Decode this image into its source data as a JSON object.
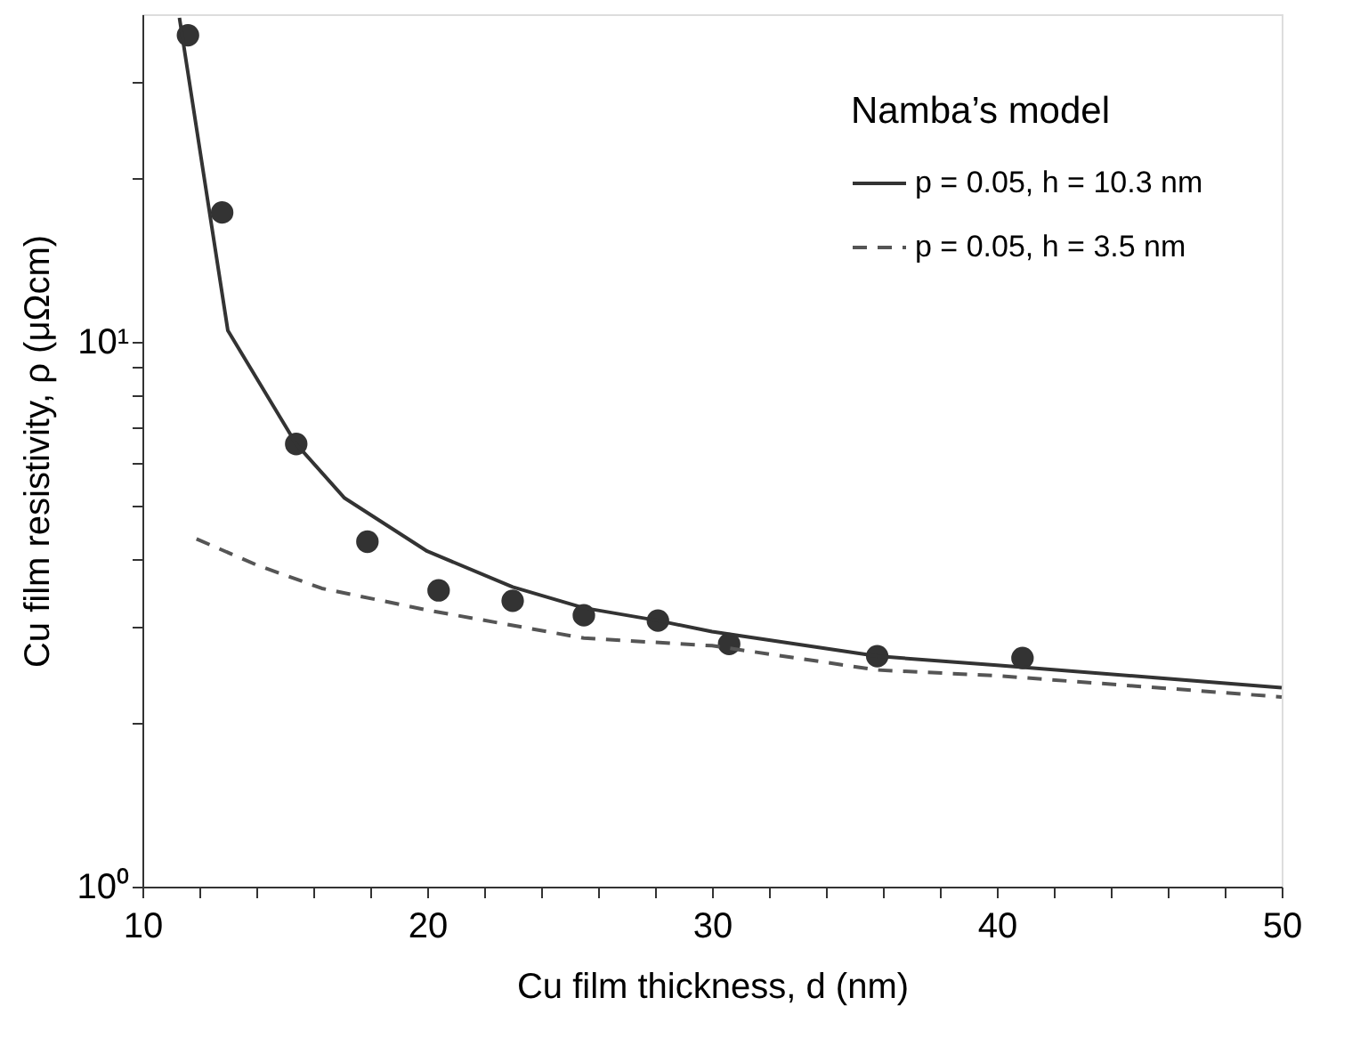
{
  "chart_data": {
    "type": "line",
    "xlabel": "Cu film thickness, d (nm)",
    "ylabel": "Cu film resistivity, ρ (μΩcm)",
    "legend_title": "Namba’s model",
    "legend": "top right",
    "log": "y",
    "grid": false,
    "xlim": [
      10,
      50
    ],
    "ylim": [
      1,
      40
    ],
    "xticks": [
      10,
      {
        "value": 12,
        "label": null
      },
      {
        "value": 14,
        "label": null
      },
      {
        "value": 16,
        "label": null
      },
      {
        "value": 18,
        "label": null
      },
      20,
      {
        "value": 22,
        "label": null
      },
      {
        "value": 24,
        "label": null
      },
      {
        "value": 26,
        "label": null
      },
      {
        "value": 28,
        "label": null
      },
      30,
      {
        "value": 32,
        "label": null
      },
      {
        "value": 34,
        "label": null
      },
      {
        "value": 36,
        "label": null
      },
      {
        "value": 38,
        "label": null
      },
      40,
      {
        "value": 42,
        "label": null
      },
      {
        "value": 44,
        "label": null
      },
      {
        "value": 46,
        "label": null
      },
      {
        "value": 48,
        "label": null
      },
      50
    ],
    "yticks": [
      {
        "value": 1,
        "label": "10⁰"
      },
      {
        "value": 2,
        "label": null
      },
      {
        "value": 3,
        "label": null
      },
      {
        "value": 4,
        "label": null
      },
      {
        "value": 5,
        "label": null
      },
      {
        "value": 6,
        "label": null
      },
      {
        "value": 7,
        "label": null
      },
      {
        "value": 8,
        "label": null
      },
      {
        "value": 9,
        "label": null
      },
      {
        "value": 10,
        "label": "10¹"
      },
      {
        "value": 20,
        "label": null
      },
      {
        "value": 30,
        "label": null
      }
    ],
    "series": [
      {
        "type": "scatter",
        "marker": "circle",
        "color": "#333333",
        "x": [
          11.6,
          12.8,
          15.4,
          17.9,
          20.4,
          23.0,
          25.5,
          28.1,
          30.6,
          35.8,
          40.9
        ],
        "values": [
          36.6,
          17.3,
          6.5,
          4.3,
          3.5,
          3.35,
          3.15,
          3.08,
          2.79,
          2.65,
          2.63
        ]
      },
      {
        "type": "line",
        "name": "p = 0.05, h = 10.3 nm",
        "marker": "none",
        "line_style": "solid",
        "color": "#333333",
        "x": [
          11.3,
          13.0,
          15.4,
          17.1,
          20.0,
          23.0,
          25.5,
          28.1,
          30.0,
          35.8,
          40.0,
          50.0
        ],
        "values": [
          39.4,
          10.5,
          6.5,
          5.17,
          4.13,
          3.55,
          3.25,
          3.08,
          2.94,
          2.65,
          2.55,
          2.32
        ]
      },
      {
        "type": "line",
        "name": "p = 0.05, h = 3.5 nm",
        "marker": "none",
        "line_style": "dashed",
        "color": "#555555",
        "x": [
          11.9,
          14.0,
          16.3,
          20.0,
          25.5,
          30.0,
          35.8,
          40.0,
          50.0
        ],
        "values": [
          4.35,
          3.9,
          3.53,
          3.22,
          2.86,
          2.77,
          2.5,
          2.44,
          2.23
        ]
      }
    ]
  }
}
